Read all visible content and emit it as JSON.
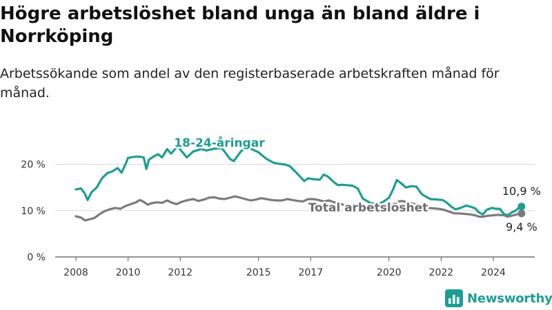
{
  "title": "Högre arbetslöshet bland unga än bland äldre i Norrköping",
  "subtitle": "Arbetssökande som andel av den registerbaserade arbetskraften månad för månad.",
  "brand": {
    "name": "Newsworthy",
    "icon": "bar-chart-logo-icon",
    "color": "#1d9e93"
  },
  "chart_data": {
    "type": "line",
    "title": "Högre arbetslöshet bland unga än bland äldre i Norrköping",
    "subtitle": "Arbetssökande som andel av den registerbaserade arbetskraften månad för månad.",
    "xlim": [
      2007.6,
      2025.4
    ],
    "ylim": [
      0,
      25
    ],
    "x_ticks": [
      2008,
      2010,
      2012,
      2015,
      2017,
      2020,
      2022,
      2024
    ],
    "x_tick_labels": [
      "2008",
      "2010",
      "2012",
      "2015",
      "2017",
      "2020",
      "2022",
      "2024"
    ],
    "y_ticks": [
      0,
      10,
      20
    ],
    "y_tick_labels": [
      "0 %",
      "10 %",
      "20 %"
    ],
    "grid": "horizontal",
    "legend": "inline",
    "series": [
      {
        "name": "18-24-åringar",
        "color": "#1d9e93",
        "end_label": "10,9 %",
        "points": [
          [
            2008.0,
            14.6
          ],
          [
            2008.2,
            14.8
          ],
          [
            2008.35,
            13.6
          ],
          [
            2008.45,
            12.3
          ],
          [
            2008.6,
            14.0
          ],
          [
            2008.8,
            15.0
          ],
          [
            2009.0,
            17.0
          ],
          [
            2009.2,
            18.1
          ],
          [
            2009.4,
            18.5
          ],
          [
            2009.6,
            19.2
          ],
          [
            2009.75,
            18.2
          ],
          [
            2009.9,
            20.0
          ],
          [
            2010.0,
            21.4
          ],
          [
            2010.2,
            21.6
          ],
          [
            2010.4,
            21.7
          ],
          [
            2010.6,
            21.5
          ],
          [
            2010.7,
            19.0
          ],
          [
            2010.8,
            21.0
          ],
          [
            2010.95,
            21.6
          ],
          [
            2011.15,
            22.2
          ],
          [
            2011.3,
            21.5
          ],
          [
            2011.5,
            23.3
          ],
          [
            2011.65,
            22.3
          ],
          [
            2011.9,
            24.0
          ],
          [
            2012.0,
            23.2
          ],
          [
            2012.25,
            21.5
          ],
          [
            2012.5,
            22.8
          ],
          [
            2012.8,
            23.3
          ],
          [
            2013.0,
            23.0
          ],
          [
            2013.3,
            23.4
          ],
          [
            2013.6,
            23.5
          ],
          [
            2013.9,
            21.2
          ],
          [
            2014.05,
            20.7
          ],
          [
            2014.35,
            23.0
          ],
          [
            2014.7,
            23.4
          ],
          [
            2015.0,
            22.6
          ],
          [
            2015.3,
            21.2
          ],
          [
            2015.6,
            20.3
          ],
          [
            2015.8,
            20.1
          ],
          [
            2016.0,
            20.0
          ],
          [
            2016.2,
            19.6
          ],
          [
            2016.4,
            18.5
          ],
          [
            2016.6,
            17.3
          ],
          [
            2016.75,
            16.4
          ],
          [
            2016.9,
            17.0
          ],
          [
            2017.1,
            16.8
          ],
          [
            2017.35,
            16.7
          ],
          [
            2017.5,
            17.8
          ],
          [
            2017.65,
            17.4
          ],
          [
            2017.9,
            16.1
          ],
          [
            2018.05,
            15.5
          ],
          [
            2018.2,
            15.6
          ],
          [
            2018.4,
            15.5
          ],
          [
            2018.6,
            15.4
          ],
          [
            2018.8,
            14.8
          ],
          [
            2019.0,
            12.6
          ],
          [
            2019.3,
            11.6
          ],
          [
            2019.6,
            11.4
          ],
          [
            2019.8,
            12.0
          ],
          [
            2020.0,
            12.8
          ],
          [
            2020.15,
            14.5
          ],
          [
            2020.3,
            16.6
          ],
          [
            2020.45,
            16.0
          ],
          [
            2020.65,
            15.0
          ],
          [
            2020.85,
            15.3
          ],
          [
            2021.05,
            15.2
          ],
          [
            2021.25,
            13.6
          ],
          [
            2021.45,
            12.9
          ],
          [
            2021.6,
            12.5
          ],
          [
            2021.85,
            12.4
          ],
          [
            2022.05,
            12.3
          ],
          [
            2022.2,
            11.8
          ],
          [
            2022.4,
            10.8
          ],
          [
            2022.55,
            10.3
          ],
          [
            2022.75,
            10.6
          ],
          [
            2022.95,
            11.1
          ],
          [
            2023.1,
            10.9
          ],
          [
            2023.3,
            10.5
          ],
          [
            2023.45,
            9.6
          ],
          [
            2023.6,
            9.2
          ],
          [
            2023.75,
            10.2
          ],
          [
            2023.95,
            10.6
          ],
          [
            2024.1,
            10.4
          ],
          [
            2024.25,
            10.4
          ],
          [
            2024.4,
            9.3
          ],
          [
            2024.55,
            9.0
          ],
          [
            2024.7,
            9.6
          ],
          [
            2024.85,
            10.0
          ],
          [
            2025.0,
            10.7
          ],
          [
            2025.08,
            10.9
          ]
        ]
      },
      {
        "name": "Total arbetslöshet",
        "color": "#7b7b7f",
        "end_label": "9,4 %",
        "points": [
          [
            2008.0,
            8.8
          ],
          [
            2008.2,
            8.5
          ],
          [
            2008.35,
            7.9
          ],
          [
            2008.5,
            8.1
          ],
          [
            2008.7,
            8.4
          ],
          [
            2008.9,
            9.2
          ],
          [
            2009.1,
            9.9
          ],
          [
            2009.3,
            10.3
          ],
          [
            2009.5,
            10.6
          ],
          [
            2009.7,
            10.4
          ],
          [
            2009.9,
            11.0
          ],
          [
            2010.1,
            11.4
          ],
          [
            2010.3,
            11.8
          ],
          [
            2010.45,
            12.3
          ],
          [
            2010.6,
            11.9
          ],
          [
            2010.75,
            11.3
          ],
          [
            2010.9,
            11.6
          ],
          [
            2011.1,
            11.8
          ],
          [
            2011.3,
            11.7
          ],
          [
            2011.5,
            12.2
          ],
          [
            2011.65,
            11.8
          ],
          [
            2011.85,
            11.4
          ],
          [
            2012.05,
            11.9
          ],
          [
            2012.3,
            12.3
          ],
          [
            2012.5,
            12.5
          ],
          [
            2012.7,
            12.1
          ],
          [
            2012.9,
            12.4
          ],
          [
            2013.1,
            12.8
          ],
          [
            2013.3,
            12.9
          ],
          [
            2013.5,
            12.6
          ],
          [
            2013.7,
            12.5
          ],
          [
            2013.9,
            12.8
          ],
          [
            2014.1,
            13.1
          ],
          [
            2014.3,
            12.8
          ],
          [
            2014.5,
            12.5
          ],
          [
            2014.7,
            12.2
          ],
          [
            2014.9,
            12.4
          ],
          [
            2015.1,
            12.7
          ],
          [
            2015.3,
            12.5
          ],
          [
            2015.5,
            12.3
          ],
          [
            2015.7,
            12.2
          ],
          [
            2015.9,
            12.2
          ],
          [
            2016.1,
            12.5
          ],
          [
            2016.3,
            12.3
          ],
          [
            2016.5,
            12.1
          ],
          [
            2016.7,
            12.0
          ],
          [
            2016.9,
            12.5
          ],
          [
            2017.1,
            12.5
          ],
          [
            2017.3,
            12.3
          ],
          [
            2017.5,
            12.0
          ],
          [
            2017.7,
            12.2
          ],
          [
            2017.9,
            11.8
          ],
          [
            2018.1,
            11.5
          ],
          [
            2018.3,
            11.2
          ],
          [
            2018.5,
            11.2
          ],
          [
            2018.7,
            11.3
          ],
          [
            2018.9,
            11.0
          ],
          [
            2019.1,
            10.8
          ],
          [
            2019.3,
            10.6
          ],
          [
            2019.5,
            10.7
          ],
          [
            2019.7,
            10.9
          ],
          [
            2019.9,
            11.0
          ],
          [
            2020.1,
            11.3
          ],
          [
            2020.3,
            11.9
          ],
          [
            2020.5,
            12.1
          ],
          [
            2020.7,
            11.8
          ],
          [
            2020.9,
            11.5
          ],
          [
            2021.1,
            11.2
          ],
          [
            2021.3,
            10.8
          ],
          [
            2021.5,
            10.6
          ],
          [
            2021.7,
            10.5
          ],
          [
            2021.9,
            10.4
          ],
          [
            2022.1,
            10.2
          ],
          [
            2022.3,
            9.8
          ],
          [
            2022.5,
            9.4
          ],
          [
            2022.7,
            9.4
          ],
          [
            2022.9,
            9.3
          ],
          [
            2023.1,
            9.2
          ],
          [
            2023.3,
            9.0
          ],
          [
            2023.45,
            8.7
          ],
          [
            2023.6,
            8.7
          ],
          [
            2023.8,
            8.9
          ],
          [
            2024.0,
            9.0
          ],
          [
            2024.2,
            9.1
          ],
          [
            2024.4,
            9.0
          ],
          [
            2024.55,
            8.7
          ],
          [
            2024.7,
            8.9
          ],
          [
            2024.9,
            9.2
          ],
          [
            2025.08,
            9.4
          ]
        ]
      }
    ]
  }
}
